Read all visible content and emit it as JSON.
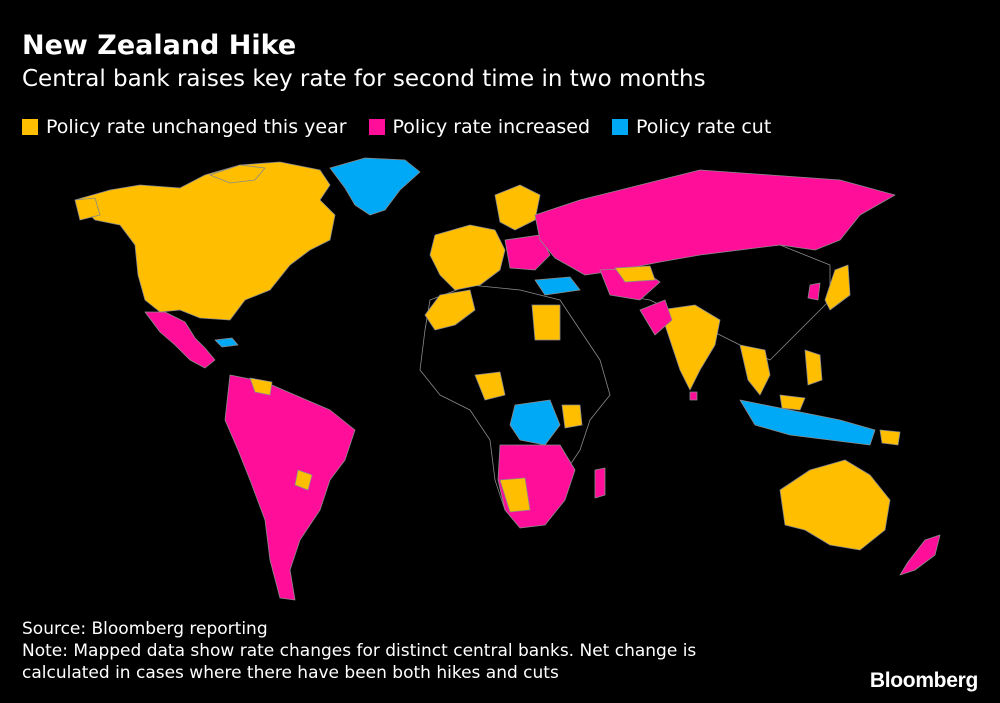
{
  "header": {
    "title": "New Zealand Hike",
    "subtitle": "Central bank raises key rate for second time in two months"
  },
  "legend": {
    "items": [
      {
        "label": "Policy rate unchanged this year",
        "color": "#FFBF00"
      },
      {
        "label": "Policy rate increased",
        "color": "#FF0E9A"
      },
      {
        "label": "Policy rate cut",
        "color": "#00A9F5"
      }
    ]
  },
  "colors": {
    "unchanged": "#FFBF00",
    "increased": "#FF0E9A",
    "cut": "#00A9F5",
    "no_data": "#000000",
    "border": "#8a8a8a"
  },
  "footer": {
    "source": "Source: Bloomberg reporting",
    "note_line1": "Note: Mapped data show rate changes for distinct central banks. Net change is",
    "note_line2": "calculated in cases where there have been both hikes and cuts",
    "logo": "Bloomberg"
  }
}
